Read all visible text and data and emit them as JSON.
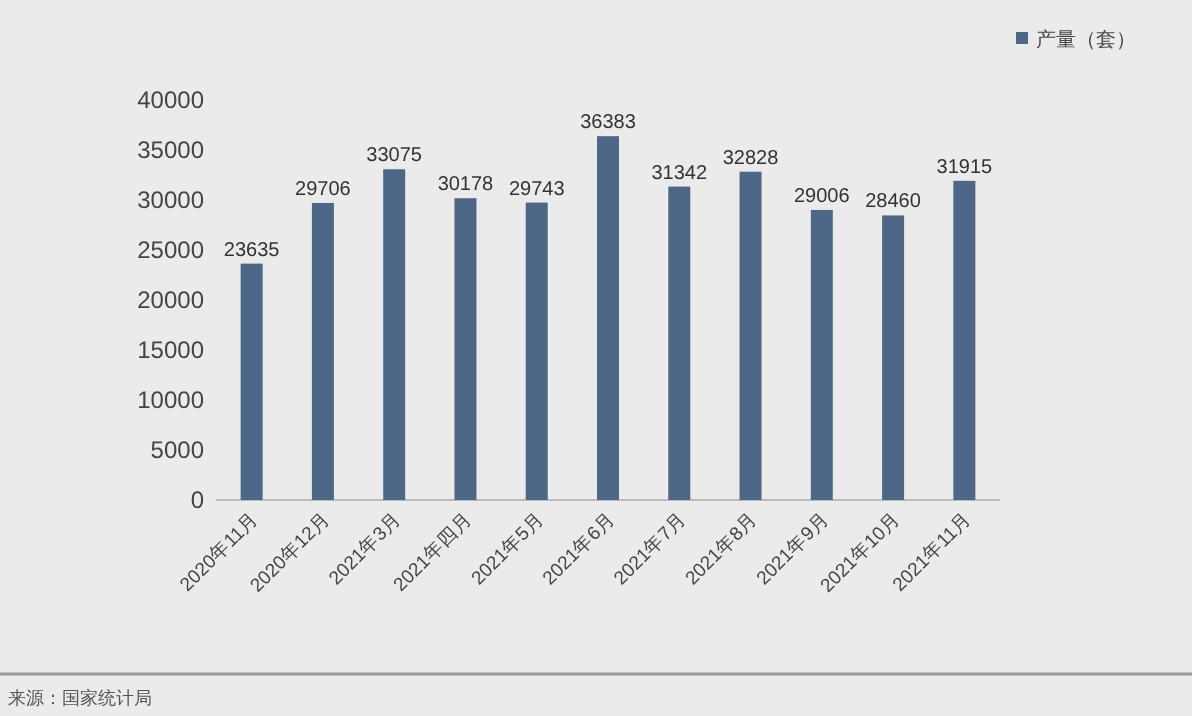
{
  "chart_data": {
    "type": "bar",
    "categories": [
      "2020年11月",
      "2020年12月",
      "2021年3月",
      "2021年四月",
      "2021年5月",
      "2021年6月",
      "2021年7月",
      "2021年8月",
      "2021年9月",
      "2021年10月",
      "2021年11月"
    ],
    "series": [
      {
        "name": "产量（套）",
        "color": "#4e6787",
        "values": [
          23635,
          29706,
          33075,
          30178,
          29743,
          36383,
          31342,
          32828,
          29006,
          28460,
          31915
        ]
      }
    ],
    "ylim": [
      0,
      40000
    ],
    "yticks": [
      0,
      5000,
      10000,
      15000,
      20000,
      25000,
      30000,
      35000,
      40000
    ],
    "data_labels": true,
    "legend": "top right",
    "grid": false,
    "annotations": [
      "来源：国家统计局"
    ]
  }
}
